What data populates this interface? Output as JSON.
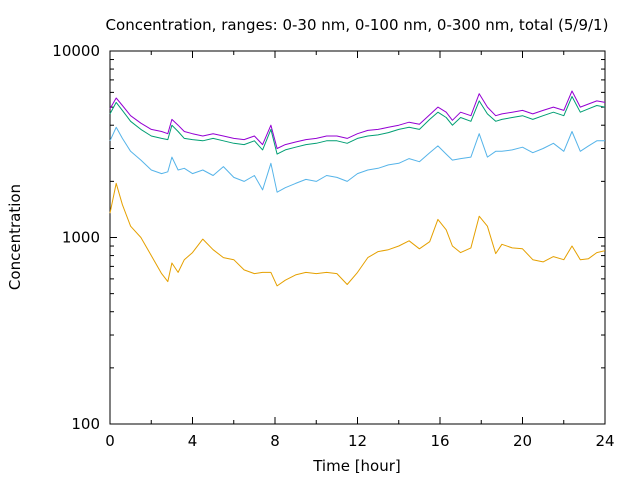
{
  "chart_data": {
    "type": "line",
    "title": "Concentration, ranges: 0-30 nm, 0-100 nm, 0-300 nm, total (5/9/1)",
    "xlabel": "Time [hour]",
    "ylabel": "Concentration",
    "xlim": [
      0,
      24
    ],
    "ylim": [
      100,
      10000
    ],
    "yscale": "log",
    "grid": false,
    "x_ticks": [
      "0",
      "4",
      "8",
      "12",
      "16",
      "20",
      "24"
    ],
    "y_ticks": [
      "100",
      "1000",
      "10000"
    ],
    "x": [
      0,
      0.3,
      0.6,
      1.0,
      1.5,
      2.0,
      2.5,
      2.8,
      3.0,
      3.3,
      3.6,
      4.0,
      4.5,
      5.0,
      5.5,
      6.0,
      6.5,
      7.0,
      7.4,
      7.8,
      8.1,
      8.5,
      9.0,
      9.5,
      10.0,
      10.5,
      11.0,
      11.5,
      12.0,
      12.5,
      13.0,
      13.5,
      14.0,
      14.5,
      15.0,
      15.5,
      15.9,
      16.3,
      16.6,
      17.0,
      17.5,
      17.9,
      18.3,
      18.7,
      19.0,
      19.5,
      20.0,
      20.5,
      21.0,
      21.5,
      22.0,
      22.4,
      22.8,
      23.2,
      23.6,
      24.0
    ],
    "series": [
      {
        "color": "#e5a000",
        "values": [
          1350,
          1950,
          1500,
          1150,
          1000,
          800,
          640,
          580,
          730,
          650,
          760,
          830,
          980,
          860,
          780,
          760,
          670,
          640,
          650,
          650,
          550,
          590,
          630,
          650,
          640,
          650,
          640,
          560,
          650,
          780,
          840,
          860,
          900,
          960,
          870,
          950,
          1250,
          1100,
          900,
          830,
          880,
          1300,
          1150,
          820,
          920,
          880,
          870,
          760,
          740,
          790,
          760,
          900,
          760,
          770,
          830,
          850
        ]
      },
      {
        "color": "#56b4e9",
        "values": [
          3300,
          3900,
          3400,
          2900,
          2600,
          2300,
          2200,
          2250,
          2700,
          2300,
          2350,
          2200,
          2300,
          2150,
          2400,
          2100,
          2000,
          2150,
          1800,
          2500,
          1750,
          1850,
          1950,
          2050,
          2000,
          2150,
          2100,
          2000,
          2200,
          2300,
          2350,
          2450,
          2500,
          2650,
          2550,
          2850,
          3100,
          2800,
          2600,
          2650,
          2700,
          3600,
          2700,
          2900,
          2900,
          2950,
          3050,
          2850,
          3000,
          3200,
          2900,
          3700,
          2900,
          3100,
          3300,
          3300
        ]
      },
      {
        "color": "#009e73",
        "values": [
          4600,
          5300,
          4800,
          4200,
          3800,
          3500,
          3400,
          3350,
          4000,
          3700,
          3400,
          3350,
          3300,
          3400,
          3300,
          3200,
          3150,
          3300,
          2950,
          3800,
          2800,
          2950,
          3050,
          3150,
          3200,
          3300,
          3300,
          3200,
          3400,
          3500,
          3550,
          3650,
          3800,
          3900,
          3800,
          4300,
          4700,
          4400,
          4000,
          4400,
          4200,
          5400,
          4600,
          4200,
          4300,
          4400,
          4500,
          4300,
          4500,
          4700,
          4500,
          5700,
          4700,
          4900,
          5100,
          5000
        ]
      },
      {
        "color": "#9400d3",
        "values": [
          4900,
          5600,
          5100,
          4500,
          4100,
          3800,
          3700,
          3600,
          4300,
          4000,
          3700,
          3600,
          3500,
          3600,
          3500,
          3400,
          3350,
          3500,
          3150,
          4000,
          3000,
          3150,
          3250,
          3350,
          3400,
          3500,
          3500,
          3400,
          3600,
          3750,
          3800,
          3900,
          4000,
          4150,
          4050,
          4550,
          5000,
          4700,
          4250,
          4700,
          4500,
          5900,
          5000,
          4500,
          4600,
          4700,
          4800,
          4600,
          4800,
          5000,
          4800,
          6100,
          5000,
          5200,
          5400,
          5300
        ]
      }
    ]
  }
}
